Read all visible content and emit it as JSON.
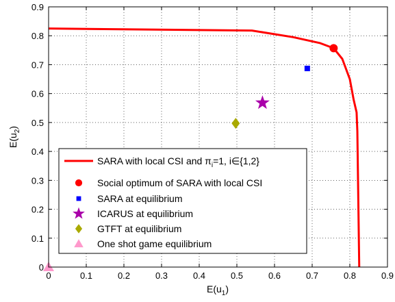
{
  "chart_data": {
    "type": "scatter",
    "title": "",
    "xlabel": "E(u1)",
    "ylabel": "E(u2)",
    "xlim": [
      0,
      0.9
    ],
    "ylim": [
      0,
      0.9
    ],
    "x_ticks": [
      "0",
      "0.1",
      "0.2",
      "0.3",
      "0.4",
      "0.5",
      "0.6",
      "0.7",
      "0.8",
      "0.9"
    ],
    "y_ticks": [
      "0",
      "0.1",
      "0.2",
      "0.3",
      "0.4",
      "0.5",
      "0.6",
      "0.7",
      "0.8",
      "0.9"
    ],
    "grid": true,
    "legend_position": "lower-left",
    "series": [
      {
        "name": "SARA with local CSI and πi=1, i∈{1,2}",
        "kind": "line",
        "color": "#ff0000",
        "marker": "none",
        "x": [
          0,
          0.54,
          0.65,
          0.72,
          0.757,
          0.78,
          0.8,
          0.81,
          0.818,
          0.82,
          0.825
        ],
        "y": [
          0.825,
          0.818,
          0.795,
          0.775,
          0.757,
          0.72,
          0.65,
          0.58,
          0.535,
          0.47,
          0
        ]
      },
      {
        "name": "Social optimum of SARA with local CSI",
        "kind": "point",
        "color": "#ff0000",
        "marker": "circle",
        "x": [
          0.757
        ],
        "y": [
          0.757
        ]
      },
      {
        "name": "SARA at equilibrium",
        "kind": "point",
        "color": "#0000ff",
        "marker": "square",
        "x": [
          0.687
        ],
        "y": [
          0.687
        ]
      },
      {
        "name": "ICARUS at equilibrium",
        "kind": "point",
        "color": "#aa00aa",
        "marker": "star",
        "x": [
          0.568
        ],
        "y": [
          0.568
        ]
      },
      {
        "name": "GTFT at equilibrium",
        "kind": "point",
        "color": "#aaaa00",
        "marker": "diamond",
        "x": [
          0.497
        ],
        "y": [
          0.497
        ]
      },
      {
        "name": "One shot game equilibrium",
        "kind": "point",
        "color": "#ff99cc",
        "marker": "triangle",
        "x": [
          0
        ],
        "y": [
          0
        ]
      }
    ]
  }
}
